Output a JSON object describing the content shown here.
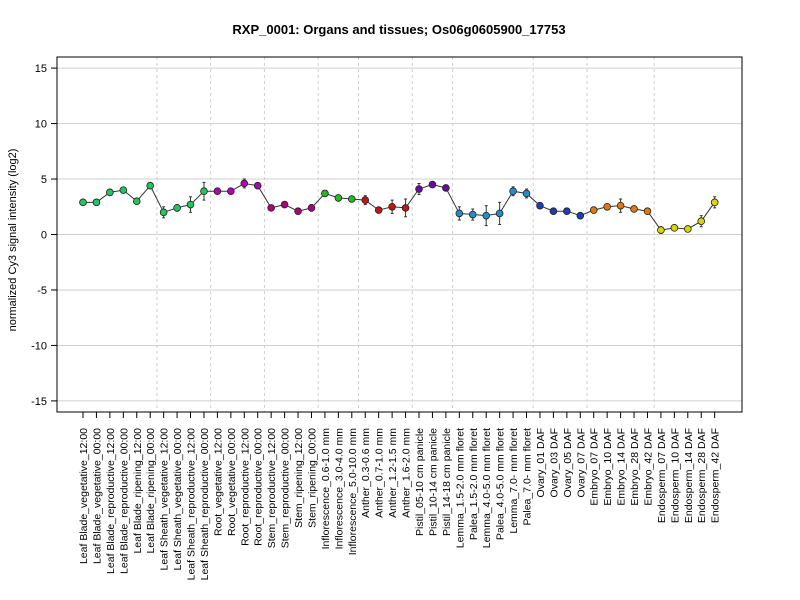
{
  "chart_data": {
    "type": "line",
    "title": "RXP_0001: Organs and tissues; Os06g0605900_17753",
    "xlabel": "",
    "ylabel": "normalized Cy3 signal intensity (log2)",
    "ylim": [
      -16,
      16
    ],
    "yticks": [
      -15,
      -10,
      -5,
      0,
      5,
      10,
      15
    ],
    "grid": true,
    "categories": [
      "Leaf Blade_vegetative_12:00",
      "Leaf Blade_vegetative_00:00",
      "Leaf Blade_reproductive_12:00",
      "Leaf Blade_reproductive_00:00",
      "Leaf Blade_ripening_12:00",
      "Leaf Blade_ripening_00:00",
      "Leaf Sheath_vegetative_12:00",
      "Leaf Sheath_vegetative_00:00",
      "Leaf Sheath_reproductive_12:00",
      "Leaf Sheath_reproductive_00:00",
      "Root_vegetative_12:00",
      "Root_vegetative_00:00",
      "Root_reproductive_12:00",
      "Root_reproductive_00:00",
      "Stem_reproductive_12:00",
      "Stem_reproductive_00:00",
      "Stem_ripening_12:00",
      "Stem_ripening_00:00",
      "Inflorescence_0.6-1.0 mm",
      "Inflorescence_3.0-4.0 mm",
      "Inflorescence_5.0-10.0 mm",
      "Anther_0.3-0.6 mm",
      "Anther_0.7-1.0 mm",
      "Anther_1.2-1.5 mm",
      "Anther_1.6-2.0 mm",
      "Pistil_05-10 cm panicle",
      "Pistil_10-14 cm panicle",
      "Pistil_14-18 cm panicle",
      "Lemma_1.5-2.0 mm floret",
      "Palea_1.5-2.0 mm floret",
      "Lemma_4.0-5.0 mm floret",
      "Palea_4.0-5.0 mm floret",
      "Lemma_7.0- mm floret",
      "Palea_7.0- mm floret",
      "Ovary_01 DAF",
      "Ovary_03 DAF",
      "Ovary_05 DAF",
      "Ovary_07 DAF",
      "Embryo_07 DAF",
      "Embryo_10 DAF",
      "Embryo_14 DAF",
      "Embryo_28 DAF",
      "Embryo_42 DAF",
      "Endosperm_07 DAF",
      "Endosperm_10 DAF",
      "Endosperm_14 DAF",
      "Endosperm_28 DAF",
      "Endosperm_42 DAF"
    ],
    "values": [
      2.9,
      2.9,
      3.8,
      4.0,
      3.0,
      4.4,
      2.0,
      2.4,
      2.7,
      3.9,
      3.9,
      3.9,
      4.6,
      4.4,
      2.4,
      2.7,
      2.1,
      2.4,
      3.7,
      3.3,
      3.2,
      3.1,
      2.2,
      2.5,
      2.4,
      4.1,
      4.5,
      4.2,
      1.9,
      1.8,
      1.7,
      1.9,
      3.9,
      3.7,
      2.6,
      2.1,
      2.1,
      1.7,
      2.2,
      2.5,
      2.6,
      2.3,
      2.1,
      0.4,
      0.6,
      0.5,
      1.2,
      2.9
    ],
    "error": [
      0.15,
      0.15,
      0.2,
      0.2,
      0.2,
      0.2,
      0.5,
      0.3,
      0.7,
      0.8,
      0.1,
      0.15,
      0.4,
      0.1,
      0.2,
      0.15,
      0.1,
      0.3,
      0.15,
      0.1,
      0.15,
      0.4,
      0.25,
      0.6,
      0.8,
      0.5,
      0.2,
      0.15,
      0.6,
      0.5,
      0.9,
      1.0,
      0.4,
      0.4,
      0.15,
      0.1,
      0.15,
      0.25,
      0.1,
      0.15,
      0.6,
      0.15,
      0.1,
      0.3,
      0.2,
      0.1,
      0.5,
      0.5
    ],
    "colors": [
      "#22c55e",
      "#22c55e",
      "#22c55e",
      "#22c55e",
      "#22c55e",
      "#22c55e",
      "#22c55e",
      "#22c55e",
      "#22c55e",
      "#22c55e",
      "#b500b5",
      "#b500b5",
      "#b500b5",
      "#b500b5",
      "#b0007a",
      "#b0007a",
      "#b0007a",
      "#b0007a",
      "#22bb22",
      "#22bb22",
      "#22bb22",
      "#c01515",
      "#c01515",
      "#c01515",
      "#c01515",
      "#6a0aa0",
      "#6a0aa0",
      "#6a0aa0",
      "#1e90d0",
      "#1e90d0",
      "#1e90d0",
      "#1e90d0",
      "#1e90d0",
      "#1e90d0",
      "#1a3db8",
      "#1a3db8",
      "#1a3db8",
      "#1a3db8",
      "#e07a10",
      "#e07a10",
      "#e07a10",
      "#e07a10",
      "#e07a10",
      "#d8d800",
      "#d8d800",
      "#d8d800",
      "#d8d800",
      "#d8d800"
    ],
    "group_separators_after": [
      5,
      9,
      13,
      17,
      20,
      24,
      27,
      33,
      37,
      42
    ]
  }
}
